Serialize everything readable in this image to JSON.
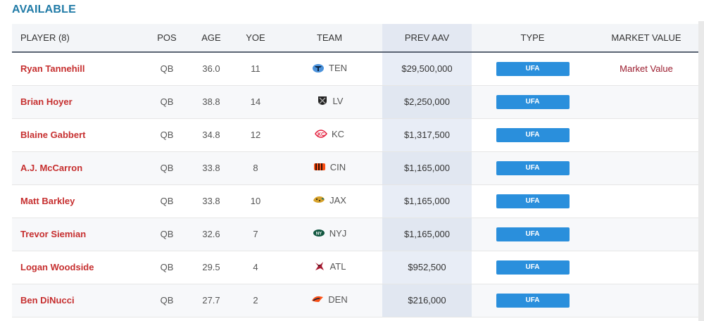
{
  "section_title": "AVAILABLE",
  "headers": {
    "player": "PLAYER (8)",
    "pos": "POS",
    "age": "AGE",
    "yoe": "YOE",
    "team": "TEAM",
    "prev_aav": "PREV AAV",
    "type": "TYPE",
    "market_value": "MARKET VALUE"
  },
  "rows": [
    {
      "player": "Ryan Tannehill",
      "pos": "QB",
      "age": "36.0",
      "yoe": "11",
      "team": "TEN",
      "team_icon": "titans-logo-icon",
      "prev_aav": "$29,500,000",
      "type": "UFA",
      "market_value": "Market Value"
    },
    {
      "player": "Brian Hoyer",
      "pos": "QB",
      "age": "38.8",
      "yoe": "14",
      "team": "LV",
      "team_icon": "raiders-logo-icon",
      "prev_aav": "$2,250,000",
      "type": "UFA",
      "market_value": ""
    },
    {
      "player": "Blaine Gabbert",
      "pos": "QB",
      "age": "34.8",
      "yoe": "12",
      "team": "KC",
      "team_icon": "chiefs-logo-icon",
      "prev_aav": "$1,317,500",
      "type": "UFA",
      "market_value": ""
    },
    {
      "player": "A.J. McCarron",
      "pos": "QB",
      "age": "33.8",
      "yoe": "8",
      "team": "CIN",
      "team_icon": "bengals-logo-icon",
      "prev_aav": "$1,165,000",
      "type": "UFA",
      "market_value": ""
    },
    {
      "player": "Matt Barkley",
      "pos": "QB",
      "age": "33.8",
      "yoe": "10",
      "team": "JAX",
      "team_icon": "jaguars-logo-icon",
      "prev_aav": "$1,165,000",
      "type": "UFA",
      "market_value": ""
    },
    {
      "player": "Trevor Siemian",
      "pos": "QB",
      "age": "32.6",
      "yoe": "7",
      "team": "NYJ",
      "team_icon": "jets-logo-icon",
      "prev_aav": "$1,165,000",
      "type": "UFA",
      "market_value": ""
    },
    {
      "player": "Logan Woodside",
      "pos": "QB",
      "age": "29.5",
      "yoe": "4",
      "team": "ATL",
      "team_icon": "falcons-logo-icon",
      "prev_aav": "$952,500",
      "type": "UFA",
      "market_value": ""
    },
    {
      "player": "Ben DiNucci",
      "pos": "QB",
      "age": "27.7",
      "yoe": "2",
      "team": "DEN",
      "team_icon": "broncos-logo-icon",
      "prev_aav": "$216,000",
      "type": "UFA",
      "market_value": ""
    }
  ],
  "colors": {
    "title": "#1f7aa6",
    "player_link": "#c62f2f",
    "badge": "#2a8fdc",
    "market_value": "#9b1c2e",
    "aav_column": "#e8edf6"
  }
}
